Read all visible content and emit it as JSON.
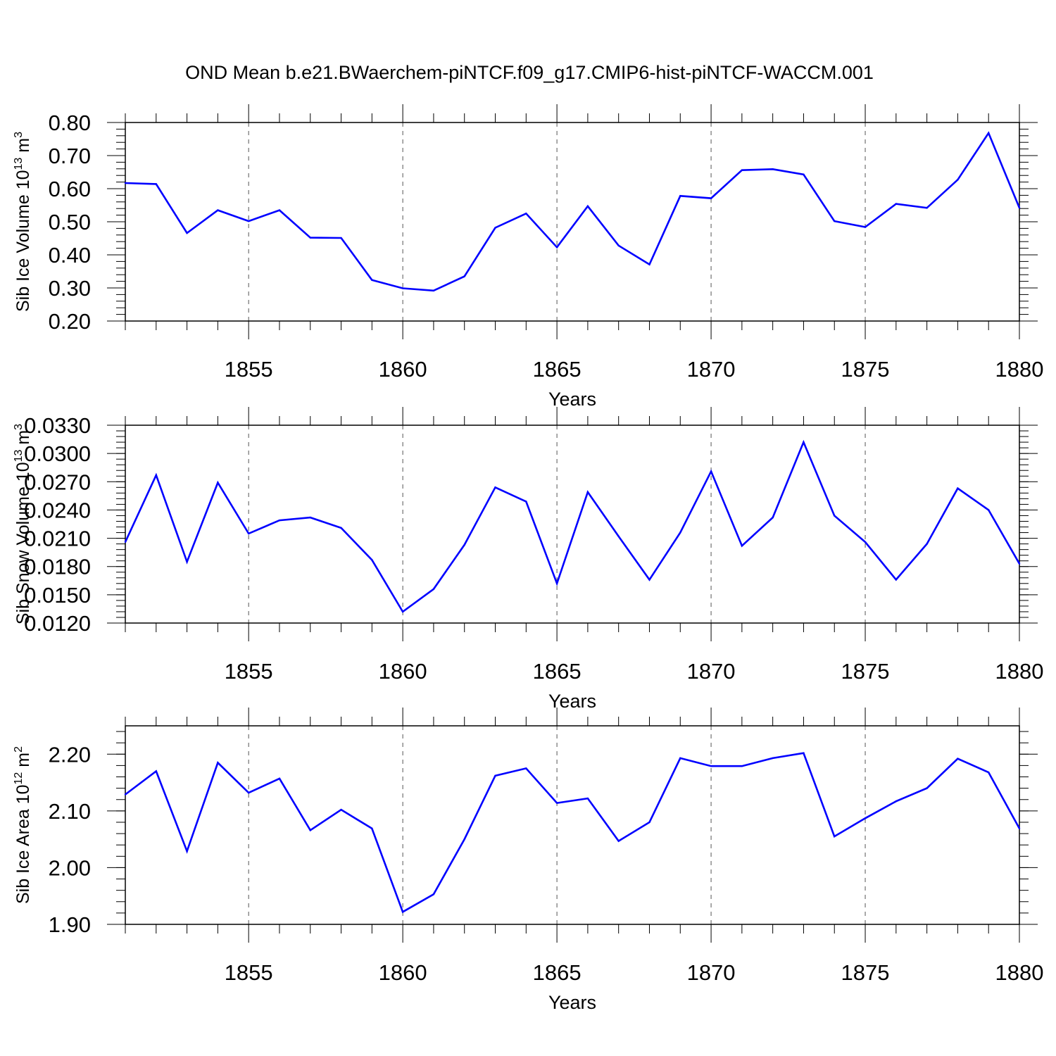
{
  "title": "OND Mean b.e21.BWaerchem-piNTCF.f09_g17.CMIP6-hist-piNTCF-WACCM.001",
  "line_color": "#0000ff",
  "chart_data": [
    {
      "type": "line",
      "ylabel_main": "Sib Ice Volume 10",
      "ylabel_exp": "13",
      "ylabel_unit": "m",
      "ylabel_unit_exp": "3",
      "xlabel": "Years",
      "xlim": [
        1851,
        1880
      ],
      "ylim": [
        0.2,
        0.8
      ],
      "ytick_values": [
        0.2,
        0.3,
        0.4,
        0.5,
        0.6,
        0.7,
        0.8
      ],
      "ytick_labels": [
        "0.20",
        "0.30",
        "0.40",
        "0.50",
        "0.60",
        "0.70",
        "0.80"
      ],
      "xtick_values": [
        1855,
        1860,
        1865,
        1870,
        1875,
        1880
      ],
      "xtick_labels": [
        "1855",
        "1860",
        "1865",
        "1870",
        "1875",
        "1880"
      ],
      "grid": "x-dashed",
      "x": [
        1851,
        1852,
        1853,
        1854,
        1855,
        1856,
        1857,
        1858,
        1859,
        1860,
        1861,
        1862,
        1863,
        1864,
        1865,
        1866,
        1867,
        1868,
        1869,
        1870,
        1871,
        1872,
        1873,
        1874,
        1875,
        1876,
        1877,
        1878,
        1879,
        1880
      ],
      "values": [
        0.617,
        0.614,
        0.466,
        0.535,
        0.502,
        0.535,
        0.452,
        0.451,
        0.324,
        0.299,
        0.292,
        0.335,
        0.482,
        0.525,
        0.423,
        0.547,
        0.428,
        0.371,
        0.578,
        0.571,
        0.656,
        0.659,
        0.643,
        0.502,
        0.484,
        0.554,
        0.542,
        0.627,
        0.768,
        0.542
      ]
    },
    {
      "type": "line",
      "ylabel_main": "Sib Snow Volume 10",
      "ylabel_exp": "13",
      "ylabel_unit": "m",
      "ylabel_unit_exp": "3",
      "xlabel": "Years",
      "xlim": [
        1851,
        1880
      ],
      "ylim": [
        0.012,
        0.033
      ],
      "ytick_values": [
        0.012,
        0.015,
        0.018,
        0.021,
        0.024,
        0.027,
        0.03,
        0.033
      ],
      "ytick_labels": [
        "0.0120",
        "0.0150",
        "0.0180",
        "0.0210",
        "0.0240",
        "0.0270",
        "0.0300",
        "0.0330"
      ],
      "xtick_values": [
        1855,
        1860,
        1865,
        1870,
        1875,
        1880
      ],
      "xtick_labels": [
        "1855",
        "1860",
        "1865",
        "1870",
        "1875",
        "1880"
      ],
      "grid": "x-dashed",
      "x": [
        1851,
        1852,
        1853,
        1854,
        1855,
        1856,
        1857,
        1858,
        1859,
        1860,
        1861,
        1862,
        1863,
        1864,
        1865,
        1866,
        1867,
        1868,
        1869,
        1870,
        1871,
        1872,
        1873,
        1874,
        1875,
        1876,
        1877,
        1878,
        1879,
        1880
      ],
      "values": [
        0.0206,
        0.0277,
        0.0185,
        0.0269,
        0.0215,
        0.0229,
        0.0232,
        0.0221,
        0.0187,
        0.0132,
        0.0156,
        0.0203,
        0.0264,
        0.0249,
        0.0162,
        0.0259,
        0.0212,
        0.0166,
        0.0216,
        0.0281,
        0.0202,
        0.0232,
        0.0312,
        0.0234,
        0.0206,
        0.0166,
        0.0204,
        0.0263,
        0.024,
        0.0183
      ]
    },
    {
      "type": "line",
      "ylabel_main": "Sib Ice Area 10",
      "ylabel_exp": "12",
      "ylabel_unit": "m",
      "ylabel_unit_exp": "2",
      "xlabel": "Years",
      "xlim": [
        1851,
        1880
      ],
      "ylim": [
        1.9,
        2.25
      ],
      "ytick_values": [
        1.9,
        2.0,
        2.1,
        2.2
      ],
      "ytick_labels": [
        "1.90",
        "2.00",
        "2.10",
        "2.20"
      ],
      "xtick_values": [
        1855,
        1860,
        1865,
        1870,
        1875,
        1880
      ],
      "xtick_labels": [
        "1855",
        "1860",
        "1865",
        "1870",
        "1875",
        "1880"
      ],
      "grid": "x-dashed",
      "x": [
        1851,
        1852,
        1853,
        1854,
        1855,
        1856,
        1857,
        1858,
        1859,
        1860,
        1861,
        1862,
        1863,
        1864,
        1865,
        1866,
        1867,
        1868,
        1869,
        1870,
        1871,
        1872,
        1873,
        1874,
        1875,
        1876,
        1877,
        1878,
        1879,
        1880
      ],
      "values": [
        2.129,
        2.17,
        2.029,
        2.185,
        2.132,
        2.157,
        2.066,
        2.102,
        2.069,
        1.922,
        1.953,
        2.05,
        2.162,
        2.175,
        2.114,
        2.122,
        2.047,
        2.08,
        2.193,
        2.179,
        2.179,
        2.193,
        2.202,
        2.055,
        2.087,
        2.117,
        2.14,
        2.192,
        2.168,
        2.069
      ]
    }
  ]
}
